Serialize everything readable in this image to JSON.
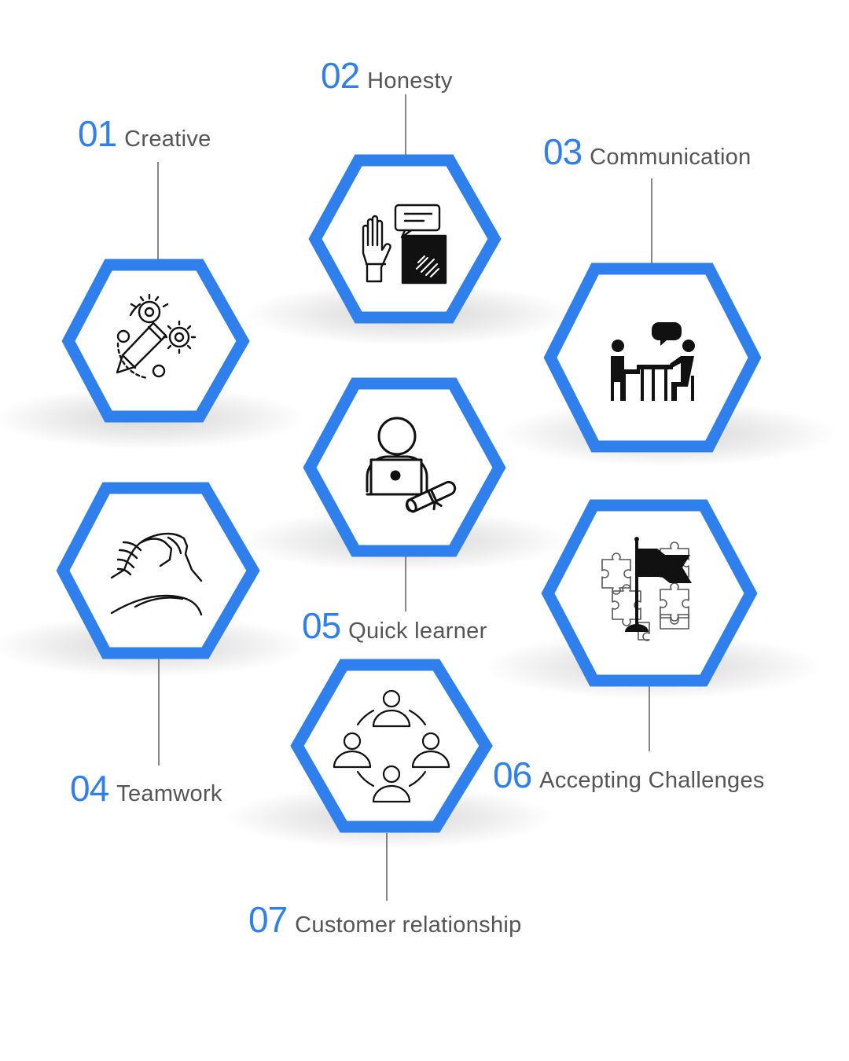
{
  "accent_color": "#2f80ed",
  "text_color": "#555555",
  "items": [
    {
      "number": "01",
      "label": "Creative",
      "icon": "creative-pencil-gears-icon"
    },
    {
      "number": "02",
      "label": "Honesty",
      "icon": "honesty-raised-hand-icon"
    },
    {
      "number": "03",
      "label": "Communication",
      "icon": "communication-meeting-icon"
    },
    {
      "number": "04",
      "label": "Teamwork",
      "icon": "teamwork-handshake-icon"
    },
    {
      "number": "05",
      "label": "Quick learner",
      "icon": "quick-learner-laptop-icon"
    },
    {
      "number": "06",
      "label": "Accepting Challenges",
      "icon": "challenge-flag-puzzle-icon"
    },
    {
      "number": "07",
      "label": "Customer relationship",
      "icon": "customer-network-icon"
    }
  ]
}
